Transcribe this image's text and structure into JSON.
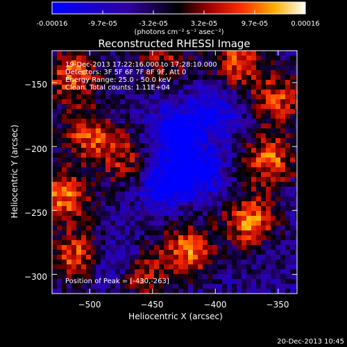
{
  "colorbar": {
    "ticks": [
      "-0.00016",
      "-9.7e-05",
      "-3.2e-05",
      "3.2e-05",
      "9.7e-05",
      "0.00016"
    ],
    "min": -0.00016,
    "max": 0.00016,
    "unit_label": "(photons cm⁻² s⁻¹ asec⁻²)"
  },
  "chart_data": {
    "type": "heatmap",
    "title": "Reconstructed RHESSI Image",
    "xlabel": "Heliocentric X (arcsec)",
    "ylabel": "Heliocentric Y (arcsec)",
    "x_ticks": [
      -500,
      -450,
      -400,
      -350
    ],
    "x_tick_labels": [
      "−500",
      "−450",
      "−400",
      "−350"
    ],
    "y_ticks": [
      -150,
      -200,
      -250,
      -300
    ],
    "y_tick_labels": [
      "−150",
      "−200",
      "−250",
      "−300"
    ],
    "xlim": [
      -530,
      -335
    ],
    "ylim": [
      -315,
      -125
    ],
    "colormap": "blue-black-red-yellow-white",
    "peak": [
      -430,
      -263
    ],
    "annotations": [
      "19-Dec-2013 17:22:16.000 to 17:28:10.000",
      "Detectors: 3F 5F 6F 7F 8F 9F, Att 0",
      "Energy Range: 25.0 - 50.0 keV",
      "Clean.  Total counts: 1.11E+04"
    ],
    "peak_label": "Position of Peak = [-430,-263]"
  },
  "timestamp": "20-Dec-2013 10:45"
}
